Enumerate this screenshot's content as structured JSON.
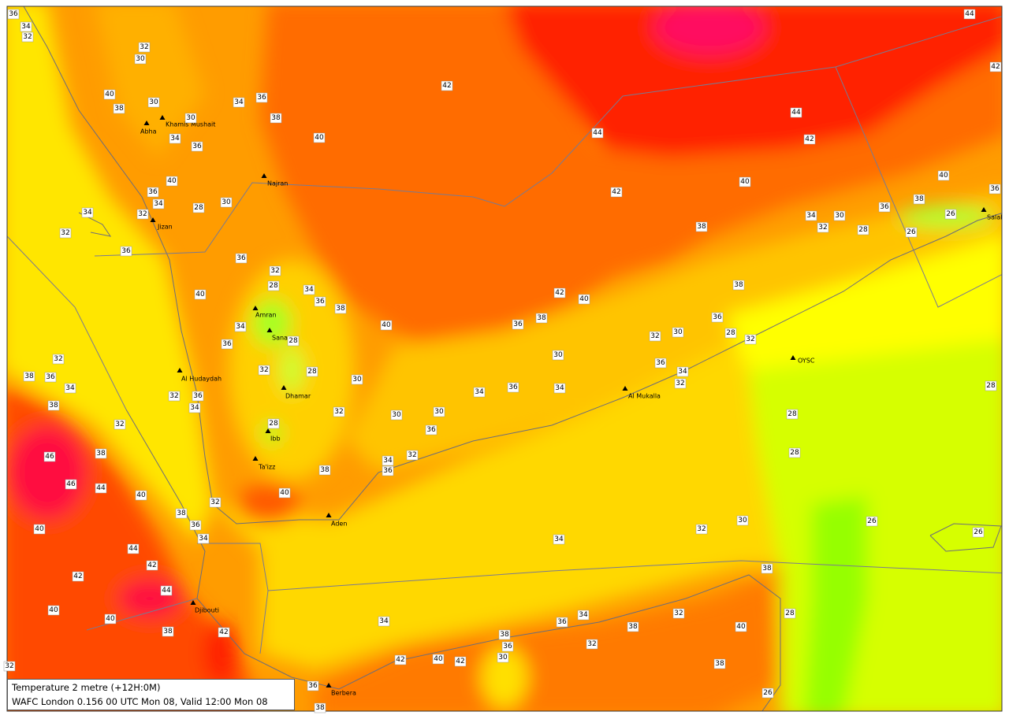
{
  "info_box": {
    "line1": "Temperature  2 metre (+12H:0M)",
    "line2": "WAFC London 0.156 00 UTC Mon 08, Valid 12:00 Mon 08"
  },
  "cities": [
    "Khamis Mushait",
    "Abha",
    "Najran",
    "Jizan",
    "Amran",
    "Sanaa",
    "Al Hudaydah",
    "Dhamar",
    "Ibb",
    "Ta'izz",
    "Aden",
    "Al Mukalla",
    "OYSC",
    "Salal",
    "Djibouti",
    "Berbera"
  ],
  "temperature_labels": [
    36,
    34,
    32,
    32,
    30,
    40,
    38,
    30,
    34,
    36,
    30,
    38,
    34,
    36,
    40,
    42,
    44,
    42,
    44,
    42,
    44,
    42,
    40,
    40,
    36,
    38,
    36,
    34,
    30,
    32,
    28,
    26,
    26,
    38,
    40,
    36,
    34,
    28,
    30,
    34,
    32,
    32,
    36,
    36,
    32,
    28,
    34,
    36,
    38,
    40,
    34,
    40,
    36,
    38,
    42,
    40,
    38,
    36,
    28,
    30,
    32,
    32,
    28,
    36,
    32,
    38,
    36,
    34,
    32,
    28,
    30,
    30,
    36,
    34,
    32,
    34,
    36,
    34,
    38,
    36,
    32,
    34,
    32,
    30,
    30,
    36,
    32,
    28,
    38,
    46,
    46,
    44,
    40,
    32,
    34,
    36,
    38,
    40,
    32,
    38,
    36,
    34,
    40,
    44,
    42,
    42,
    44,
    40,
    40,
    38,
    42,
    32,
    30,
    34,
    26,
    26,
    38,
    28,
    40,
    32,
    34,
    36,
    38,
    34,
    38,
    36,
    32,
    30,
    42,
    40,
    42,
    38,
    26,
    36,
    38,
    28,
    28,
    28,
    32
  ]
}
